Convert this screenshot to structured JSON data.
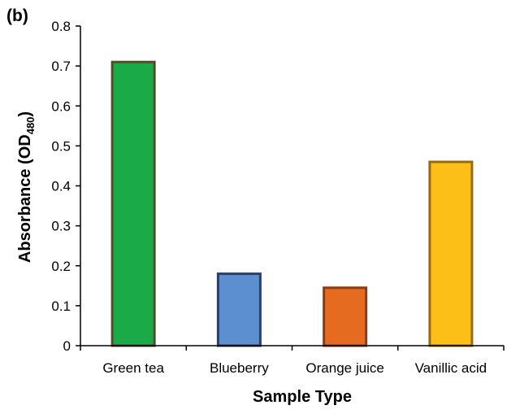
{
  "panel_label": "(b)",
  "chart_data": {
    "type": "bar",
    "title": "",
    "categories": [
      "Green tea",
      "Blueberry",
      "Orange juice",
      "Vanillic acid"
    ],
    "values": [
      0.71,
      0.18,
      0.145,
      0.46
    ],
    "colors": [
      "#1aaa47",
      "#5b8fcf",
      "#e46b1f",
      "#fbbf18"
    ],
    "border_colors": [
      "#5a4a2a",
      "#2b3f6b",
      "#8a3d1a",
      "#9a6a10"
    ],
    "xlabel": "Sample Type",
    "ylabel_main": "Absorbance (OD",
    "ylabel_sub": "480",
    "ylabel_close": ")",
    "ylim": [
      0,
      0.8
    ],
    "yticks": [
      "0",
      "0.1",
      "0.2",
      "0.3",
      "0.4",
      "0.5",
      "0.6",
      "0.7",
      "0.8"
    ],
    "grid": false
  }
}
